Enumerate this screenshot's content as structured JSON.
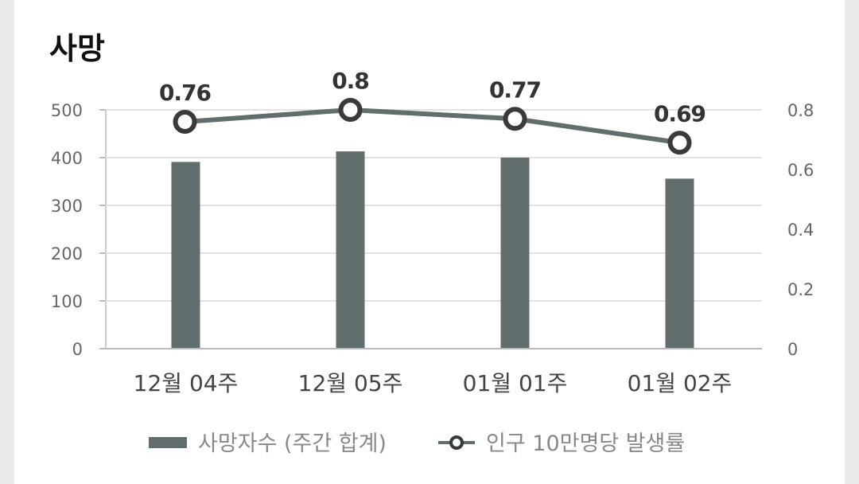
{
  "chart_data": {
    "type": "bar",
    "title": "사망",
    "categories": [
      "12월 04주",
      "12월 05주",
      "01월 01주",
      "01월 02주"
    ],
    "series": [
      {
        "name": "사망자수 (주간 합계)",
        "type": "bar",
        "axis": "left",
        "values": [
          391,
          413,
          400,
          356
        ]
      },
      {
        "name": "인구 10만명당 발생률",
        "type": "line",
        "axis": "right",
        "values": [
          0.76,
          0.8,
          0.77,
          0.69
        ]
      }
    ],
    "y_left": {
      "min": 0,
      "max": 500,
      "ticks": [
        "0",
        "100",
        "200",
        "300",
        "400",
        "500"
      ]
    },
    "y_right": {
      "min": 0,
      "max": 0.8,
      "ticks": [
        "0",
        "0.2",
        "0.4",
        "0.6",
        "0.8"
      ]
    },
    "data_labels": [
      "0.76",
      "0.8",
      "0.77",
      "0.69"
    ],
    "grid": true,
    "legend_position": "bottom",
    "colors": {
      "bar": "#626e6d",
      "line": "#626e6d",
      "marker_fill": "#ffffff",
      "marker_stroke": "#3a3a3a",
      "grid": "#e3e3e3"
    }
  }
}
